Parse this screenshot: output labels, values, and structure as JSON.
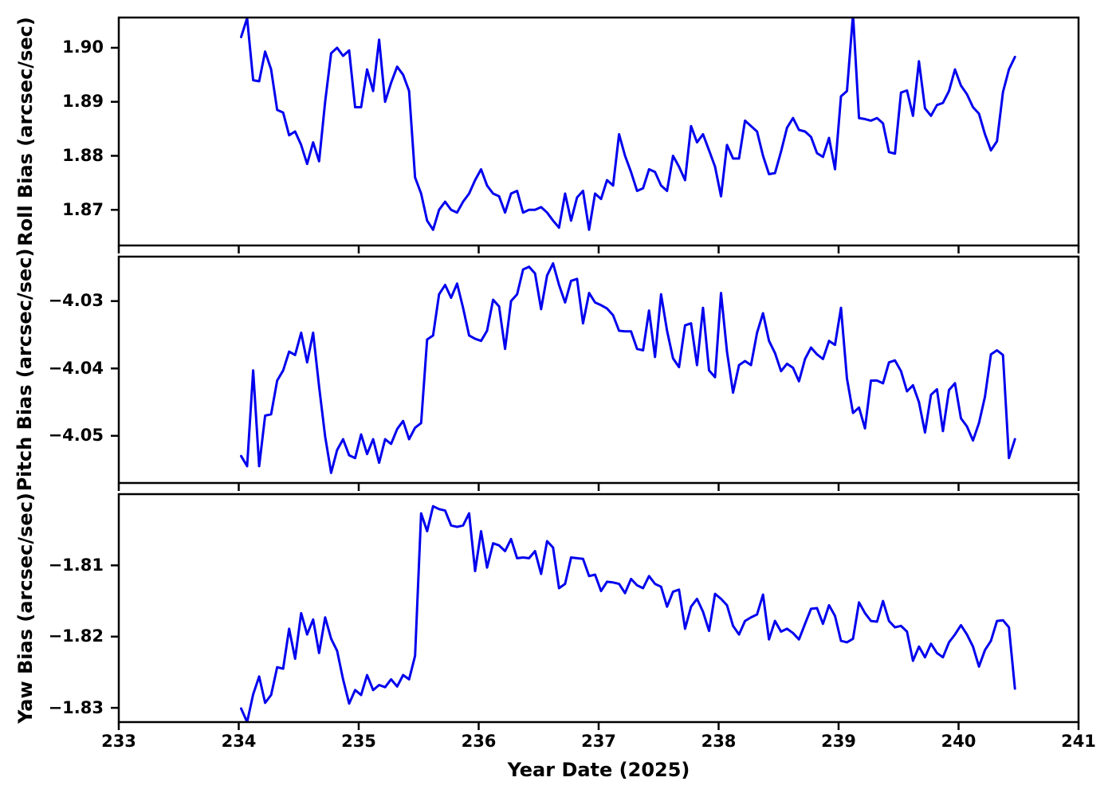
{
  "figure": {
    "background_color": "#ffffff",
    "spine_color": "#000000",
    "line_color": "#0000ee",
    "xlabel": "Year Date (2025)",
    "xlim": [
      233,
      241
    ],
    "x_tick_labels": [
      "233",
      "234",
      "235",
      "236",
      "237",
      "238",
      "239",
      "240",
      "241"
    ],
    "x_tick_values": [
      233,
      234,
      235,
      236,
      237,
      238,
      239,
      240,
      241
    ]
  },
  "chart_data": [
    {
      "type": "line",
      "series_name": "roll-bias",
      "ylabel": "Roll Bias (arcsec/sec)",
      "ylim": [
        1.8634,
        1.9056
      ],
      "ytick_labels": [
        "1.87",
        "1.88",
        "1.89",
        "1.90"
      ],
      "ytick_values": [
        1.87,
        1.88,
        1.89,
        1.9
      ],
      "x": [
        234.02,
        234.07,
        234.12,
        234.17,
        234.22,
        234.27,
        234.32,
        234.37,
        234.42,
        234.47,
        234.52,
        234.57,
        234.62,
        234.67,
        234.72,
        234.77,
        234.82,
        234.87,
        234.92,
        234.97,
        235.02,
        235.07,
        235.12,
        235.17,
        235.22,
        235.27,
        235.32,
        235.37,
        235.42,
        235.47,
        235.52,
        235.57,
        235.62,
        235.67,
        235.72,
        235.77,
        235.82,
        235.87,
        235.92,
        235.97,
        236.02,
        236.07,
        236.12,
        236.17,
        236.22,
        236.27,
        236.32,
        236.37,
        236.42,
        236.47,
        236.52,
        236.57,
        236.62,
        236.67,
        236.72,
        236.77,
        236.82,
        236.87,
        236.92,
        236.97,
        237.02,
        237.07,
        237.12,
        237.17,
        237.22,
        237.27,
        237.32,
        237.37,
        237.42,
        237.47,
        237.52,
        237.57,
        237.62,
        237.67,
        237.72,
        237.77,
        237.82,
        237.87,
        237.92,
        237.97,
        238.02,
        238.07,
        238.12,
        238.17,
        238.22,
        238.27,
        238.32,
        238.37,
        238.42,
        238.47,
        238.52,
        238.57,
        238.62,
        238.67,
        238.72,
        238.77,
        238.82,
        238.87,
        238.92,
        238.97,
        239.02,
        239.07,
        239.12,
        239.17,
        239.22,
        239.27,
        239.32,
        239.37,
        239.42,
        239.47,
        239.52,
        239.57,
        239.62,
        239.67,
        239.72,
        239.77,
        239.82,
        239.87,
        239.92,
        239.97,
        240.02,
        240.07,
        240.12,
        240.17,
        240.22,
        240.27,
        240.32,
        240.37,
        240.42,
        240.47
      ],
      "y": [
        1.902,
        1.9055,
        1.894,
        1.8938,
        1.8993,
        1.896,
        1.8885,
        1.888,
        1.8838,
        1.8845,
        1.882,
        1.8785,
        1.8825,
        1.879,
        1.89,
        1.899,
        1.9,
        1.8985,
        1.8995,
        1.889,
        1.889,
        1.896,
        1.892,
        1.9015,
        1.89,
        1.8935,
        1.8965,
        1.895,
        1.892,
        1.876,
        1.873,
        1.868,
        1.8663,
        1.87,
        1.8715,
        1.87,
        1.8695,
        1.8715,
        1.873,
        1.8755,
        1.8775,
        1.8745,
        1.873,
        1.8725,
        1.8695,
        1.873,
        1.8735,
        1.8695,
        1.87,
        1.87,
        1.8705,
        1.8695,
        1.868,
        1.8667,
        1.873,
        1.868,
        1.8723,
        1.8735,
        1.8663,
        1.873,
        1.872,
        1.8755,
        1.8745,
        1.884,
        1.88,
        1.877,
        1.8735,
        1.874,
        1.8775,
        1.877,
        1.8745,
        1.8735,
        1.88,
        1.878,
        1.8755,
        1.8855,
        1.8825,
        1.884,
        1.881,
        1.878,
        1.8725,
        1.882,
        1.8795,
        1.8795,
        1.8865,
        1.8855,
        1.8845,
        1.88,
        1.8766,
        1.8768,
        1.8808,
        1.8852,
        1.887,
        1.8848,
        1.8845,
        1.8835,
        1.8805,
        1.8798,
        1.8833,
        1.8775,
        1.891,
        1.892,
        1.9062,
        1.887,
        1.8868,
        1.8865,
        1.887,
        1.886,
        1.8807,
        1.8804,
        1.8917,
        1.8921,
        1.8874,
        1.8975,
        1.8888,
        1.8874,
        1.8894,
        1.8898,
        1.892,
        1.896,
        1.893,
        1.8914,
        1.889,
        1.8878,
        1.884,
        1.881,
        1.8827,
        1.8918,
        1.896,
        1.8983
      ]
    },
    {
      "type": "line",
      "series_name": "pitch-bias",
      "ylabel": "Pitch Bias (arcsec/sec)",
      "ylim": [
        -4.057,
        -4.0234
      ],
      "ytick_labels": [
        "−4.05",
        "−4.04",
        "−4.03"
      ],
      "ytick_values": [
        -4.05,
        -4.04,
        -4.03
      ],
      "x": [
        234.02,
        234.07,
        234.12,
        234.17,
        234.22,
        234.27,
        234.32,
        234.37,
        234.42,
        234.47,
        234.52,
        234.57,
        234.62,
        234.67,
        234.72,
        234.77,
        234.82,
        234.87,
        234.92,
        234.97,
        235.02,
        235.07,
        235.12,
        235.17,
        235.22,
        235.27,
        235.32,
        235.37,
        235.42,
        235.47,
        235.52,
        235.57,
        235.62,
        235.67,
        235.72,
        235.77,
        235.82,
        235.87,
        235.92,
        235.97,
        236.02,
        236.07,
        236.12,
        236.17,
        236.22,
        236.27,
        236.32,
        236.37,
        236.42,
        236.47,
        236.52,
        236.57,
        236.62,
        236.67,
        236.72,
        236.77,
        236.82,
        236.87,
        236.92,
        236.97,
        237.02,
        237.07,
        237.12,
        237.17,
        237.22,
        237.27,
        237.32,
        237.37,
        237.42,
        237.47,
        237.52,
        237.57,
        237.62,
        237.67,
        237.72,
        237.77,
        237.82,
        237.87,
        237.92,
        237.97,
        238.02,
        238.07,
        238.12,
        238.17,
        238.22,
        238.27,
        238.32,
        238.37,
        238.42,
        238.47,
        238.52,
        238.57,
        238.62,
        238.67,
        238.72,
        238.77,
        238.82,
        238.87,
        238.92,
        238.97,
        239.02,
        239.07,
        239.12,
        239.17,
        239.22,
        239.27,
        239.32,
        239.37,
        239.42,
        239.47,
        239.52,
        239.57,
        239.62,
        239.67,
        239.72,
        239.77,
        239.82,
        239.87,
        239.92,
        239.97,
        240.02,
        240.07,
        240.12,
        240.17,
        240.22,
        240.27,
        240.32,
        240.37,
        240.42,
        240.47
      ],
      "y": [
        -4.053,
        -4.0545,
        -4.0403,
        -4.0545,
        -4.047,
        -4.0468,
        -4.0418,
        -4.0403,
        -4.0375,
        -4.038,
        -4.0347,
        -4.0391,
        -4.0347,
        -4.0427,
        -4.0501,
        -4.0555,
        -4.0521,
        -4.0505,
        -4.0529,
        -4.0533,
        -4.0498,
        -4.0527,
        -4.0505,
        -4.054,
        -4.0505,
        -4.0512,
        -4.049,
        -4.0478,
        -4.0505,
        -4.0488,
        -4.0481,
        -4.0357,
        -4.0351,
        -4.029,
        -4.0276,
        -4.0295,
        -4.0274,
        -4.031,
        -4.0351,
        -4.0356,
        -4.0359,
        -4.0344,
        -4.0298,
        -4.0308,
        -4.0371,
        -4.03,
        -4.029,
        -4.0253,
        -4.0249,
        -4.0259,
        -4.0312,
        -4.0262,
        -4.0244,
        -4.0276,
        -4.0302,
        -4.027,
        -4.0267,
        -4.0333,
        -4.0288,
        -4.0302,
        -4.0306,
        -4.0311,
        -4.0321,
        -4.0344,
        -4.0345,
        -4.0345,
        -4.0371,
        -4.0373,
        -4.0314,
        -4.0383,
        -4.029,
        -4.0344,
        -4.0385,
        -4.0398,
        -4.0336,
        -4.0333,
        -4.0395,
        -4.031,
        -4.0403,
        -4.0413,
        -4.0288,
        -4.0375,
        -4.0436,
        -4.0395,
        -4.0389,
        -4.0395,
        -4.0347,
        -4.0318,
        -4.0359,
        -4.0377,
        -4.0404,
        -4.0393,
        -4.0399,
        -4.0419,
        -4.0386,
        -4.0369,
        -4.0379,
        -4.0386,
        -4.0359,
        -4.0365,
        -4.031,
        -4.0415,
        -4.0466,
        -4.0458,
        -4.0489,
        -4.0418,
        -4.0418,
        -4.0422,
        -4.0391,
        -4.0388,
        -4.0404,
        -4.0434,
        -4.0425,
        -4.045,
        -4.0495,
        -4.0439,
        -4.0431,
        -4.0493,
        -4.0432,
        -4.0422,
        -4.0474,
        -4.0486,
        -4.0507,
        -4.0481,
        -4.0442,
        -4.0379,
        -4.0373,
        -4.038,
        -4.0533,
        -4.0505
      ]
    },
    {
      "type": "line",
      "series_name": "yaw-bias",
      "ylabel": "Yaw Bias (arcsec/sec)",
      "ylim": [
        -1.832,
        -1.8
      ],
      "ytick_labels": [
        "−1.83",
        "−1.82",
        "−1.81"
      ],
      "ytick_values": [
        -1.83,
        -1.82,
        -1.81
      ],
      "x": [
        234.02,
        234.07,
        234.12,
        234.17,
        234.22,
        234.27,
        234.32,
        234.37,
        234.42,
        234.47,
        234.52,
        234.57,
        234.62,
        234.67,
        234.72,
        234.77,
        234.82,
        234.87,
        234.92,
        234.97,
        235.02,
        235.07,
        235.12,
        235.17,
        235.22,
        235.27,
        235.32,
        235.37,
        235.42,
        235.47,
        235.52,
        235.57,
        235.62,
        235.67,
        235.72,
        235.77,
        235.82,
        235.87,
        235.92,
        235.97,
        236.02,
        236.07,
        236.12,
        236.17,
        236.22,
        236.27,
        236.32,
        236.37,
        236.42,
        236.47,
        236.52,
        236.57,
        236.62,
        236.67,
        236.72,
        236.77,
        236.82,
        236.87,
        236.92,
        236.97,
        237.02,
        237.07,
        237.12,
        237.17,
        237.22,
        237.27,
        237.32,
        237.37,
        237.42,
        237.47,
        237.52,
        237.57,
        237.62,
        237.67,
        237.72,
        237.77,
        237.82,
        237.87,
        237.92,
        237.97,
        238.02,
        238.07,
        238.12,
        238.17,
        238.22,
        238.27,
        238.32,
        238.37,
        238.42,
        238.47,
        238.52,
        238.57,
        238.62,
        238.67,
        238.72,
        238.77,
        238.82,
        238.87,
        238.92,
        238.97,
        239.02,
        239.07,
        239.12,
        239.17,
        239.22,
        239.27,
        239.32,
        239.37,
        239.42,
        239.47,
        239.52,
        239.57,
        239.62,
        239.67,
        239.72,
        239.77,
        239.82,
        239.87,
        239.92,
        239.97,
        240.02,
        240.07,
        240.12,
        240.17,
        240.22,
        240.27,
        240.32,
        240.37,
        240.42,
        240.47
      ],
      "y": [
        -1.8301,
        -1.832,
        -1.8281,
        -1.8256,
        -1.8293,
        -1.8282,
        -1.8243,
        -1.8245,
        -1.8189,
        -1.8231,
        -1.8167,
        -1.8197,
        -1.8176,
        -1.8223,
        -1.8173,
        -1.8203,
        -1.822,
        -1.826,
        -1.8294,
        -1.8275,
        -1.8282,
        -1.8254,
        -1.8275,
        -1.8268,
        -1.8271,
        -1.826,
        -1.827,
        -1.8254,
        -1.826,
        -1.8227,
        -1.8027,
        -1.8052,
        -1.8017,
        -1.8021,
        -1.8023,
        -1.8044,
        -1.8046,
        -1.8044,
        -1.8027,
        -1.8108,
        -1.8052,
        -1.8103,
        -1.8069,
        -1.8072,
        -1.808,
        -1.8063,
        -1.809,
        -1.8089,
        -1.809,
        -1.808,
        -1.8112,
        -1.8066,
        -1.8075,
        -1.8132,
        -1.8126,
        -1.8089,
        -1.809,
        -1.8091,
        -1.8115,
        -1.8113,
        -1.8136,
        -1.8123,
        -1.8124,
        -1.8126,
        -1.8139,
        -1.8119,
        -1.8128,
        -1.8132,
        -1.8115,
        -1.8126,
        -1.813,
        -1.8158,
        -1.8137,
        -1.8134,
        -1.8189,
        -1.8158,
        -1.8147,
        -1.8165,
        -1.8192,
        -1.814,
        -1.8147,
        -1.8156,
        -1.8185,
        -1.8197,
        -1.8178,
        -1.8173,
        -1.8169,
        -1.8141,
        -1.8204,
        -1.8178,
        -1.8193,
        -1.8189,
        -1.8195,
        -1.8204,
        -1.8182,
        -1.8161,
        -1.816,
        -1.8182,
        -1.8156,
        -1.8171,
        -1.8206,
        -1.8208,
        -1.8203,
        -1.8152,
        -1.8167,
        -1.8178,
        -1.8179,
        -1.815,
        -1.8178,
        -1.8187,
        -1.8185,
        -1.8193,
        -1.8234,
        -1.8214,
        -1.8229,
        -1.821,
        -1.8223,
        -1.8229,
        -1.8208,
        -1.8197,
        -1.8184,
        -1.8197,
        -1.8214,
        -1.8242,
        -1.8219,
        -1.8206,
        -1.8178,
        -1.8177,
        -1.8187,
        -1.8273
      ]
    }
  ]
}
